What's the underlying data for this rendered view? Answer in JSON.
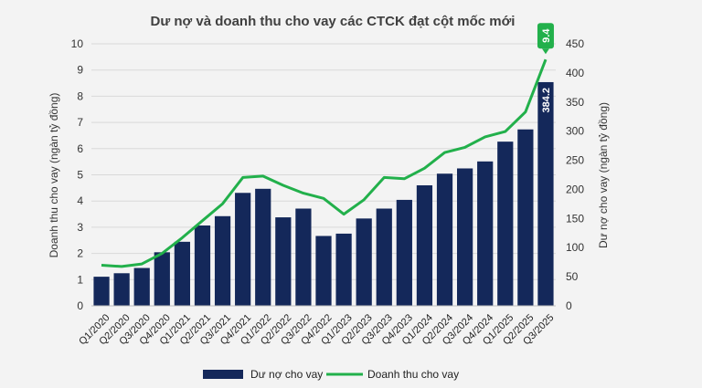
{
  "chart_data": {
    "type": "bar",
    "title": "Dư nợ và doanh thu cho vay các CTCK đạt cột mốc mới",
    "ylabel_left": "Doanh thu cho vay (ngàn tỷ đồng)",
    "ylabel_right": "Dư nợ cho vay (ngàn tỷ đồng)",
    "ylim_left": [
      0,
      10
    ],
    "ylim_right": [
      0,
      450
    ],
    "yticks_left": [
      "0",
      "1",
      "2",
      "3",
      "4",
      "5",
      "6",
      "7",
      "8",
      "9",
      "10"
    ],
    "yticks_right": [
      "0",
      "50",
      "100",
      "150",
      "200",
      "250",
      "300",
      "350",
      "400",
      "450"
    ],
    "grid": true,
    "legend_position": "bottom",
    "categories": [
      "Q1/2020",
      "Q2/2020",
      "Q3/2020",
      "Q4/2020",
      "Q1/2021",
      "Q2/2021",
      "Q3/2021",
      "Q4/2021",
      "Q1/2022",
      "Q2/2022",
      "Q3/2022",
      "Q4/2022",
      "Q1/2023",
      "Q2/2023",
      "Q3/2023",
      "Q4/2023",
      "Q1/2024",
      "Q2/2024",
      "Q3/2024",
      "Q4/2024",
      "Q1/2025",
      "Q2/2025",
      "Q3/2025"
    ],
    "series": [
      {
        "name": "Dư nợ cho vay",
        "type": "bar",
        "axis": "right",
        "color": "#14285a",
        "values": [
          50,
          56,
          65,
          92,
          110,
          138,
          154,
          194,
          201,
          152,
          167,
          120,
          124,
          150,
          167,
          182,
          207,
          227,
          236,
          248,
          282,
          303,
          384.2
        ]
      },
      {
        "name": "Doanh thu cho vay",
        "type": "line",
        "axis": "left",
        "color": "#22b04b",
        "values": [
          1.55,
          1.5,
          1.6,
          2.0,
          2.6,
          3.25,
          3.9,
          4.9,
          4.95,
          4.6,
          4.3,
          4.1,
          3.5,
          4.05,
          4.9,
          4.85,
          5.25,
          5.85,
          6.05,
          6.45,
          6.65,
          7.4,
          9.4
        ]
      }
    ],
    "annotations": [
      {
        "series": "Dư nợ cho vay",
        "category": "Q3/2025",
        "text": "384.2"
      },
      {
        "series": "Doanh thu cho vay",
        "category": "Q3/2025",
        "text": "9.4"
      }
    ]
  }
}
